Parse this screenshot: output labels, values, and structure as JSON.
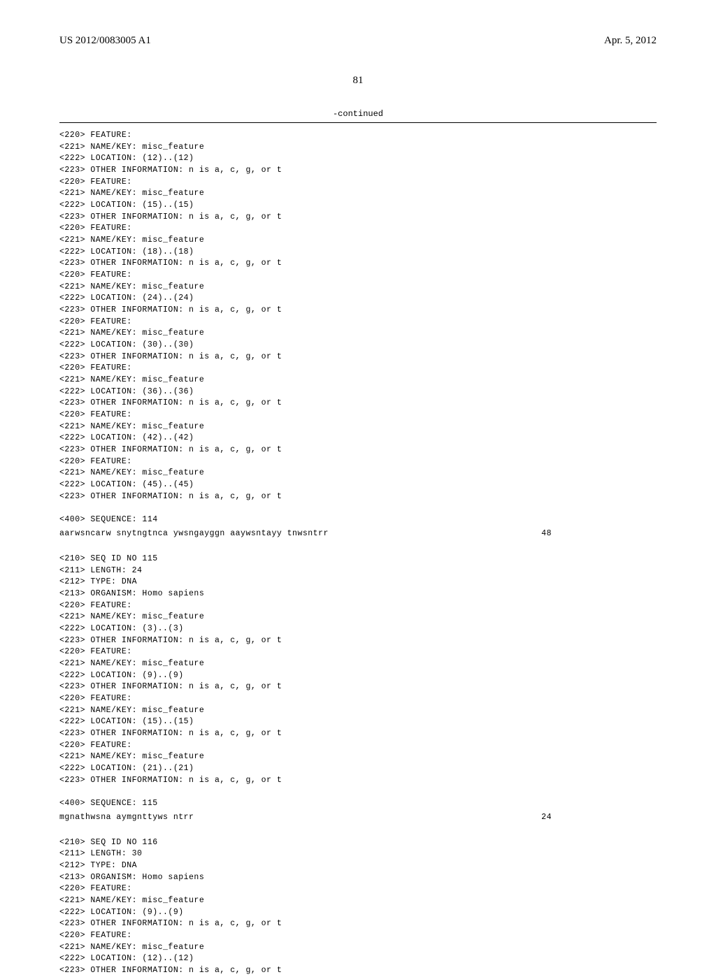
{
  "header": {
    "publication": "US 2012/0083005 A1",
    "date": "Apr. 5, 2012"
  },
  "pageNumber": "81",
  "continuedLabel": "-continued",
  "block1": {
    "lines": [
      "<220> FEATURE:",
      "<221> NAME/KEY: misc_feature",
      "<222> LOCATION: (12)..(12)",
      "<223> OTHER INFORMATION: n is a, c, g, or t",
      "<220> FEATURE:",
      "<221> NAME/KEY: misc_feature",
      "<222> LOCATION: (15)..(15)",
      "<223> OTHER INFORMATION: n is a, c, g, or t",
      "<220> FEATURE:",
      "<221> NAME/KEY: misc_feature",
      "<222> LOCATION: (18)..(18)",
      "<223> OTHER INFORMATION: n is a, c, g, or t",
      "<220> FEATURE:",
      "<221> NAME/KEY: misc_feature",
      "<222> LOCATION: (24)..(24)",
      "<223> OTHER INFORMATION: n is a, c, g, or t",
      "<220> FEATURE:",
      "<221> NAME/KEY: misc_feature",
      "<222> LOCATION: (30)..(30)",
      "<223> OTHER INFORMATION: n is a, c, g, or t",
      "<220> FEATURE:",
      "<221> NAME/KEY: misc_feature",
      "<222> LOCATION: (36)..(36)",
      "<223> OTHER INFORMATION: n is a, c, g, or t",
      "<220> FEATURE:",
      "<221> NAME/KEY: misc_feature",
      "<222> LOCATION: (42)..(42)",
      "<223> OTHER INFORMATION: n is a, c, g, or t",
      "<220> FEATURE:",
      "<221> NAME/KEY: misc_feature",
      "<222> LOCATION: (45)..(45)",
      "<223> OTHER INFORMATION: n is a, c, g, or t",
      "",
      "<400> SEQUENCE: 114"
    ],
    "sequence": "aarwsncarw snytngtnca ywsngayggn aaywsntayy tnwsntrr",
    "seqNum": "48"
  },
  "block2": {
    "lines": [
      "<210> SEQ ID NO 115",
      "<211> LENGTH: 24",
      "<212> TYPE: DNA",
      "<213> ORGANISM: Homo sapiens",
      "<220> FEATURE:",
      "<221> NAME/KEY: misc_feature",
      "<222> LOCATION: (3)..(3)",
      "<223> OTHER INFORMATION: n is a, c, g, or t",
      "<220> FEATURE:",
      "<221> NAME/KEY: misc_feature",
      "<222> LOCATION: (9)..(9)",
      "<223> OTHER INFORMATION: n is a, c, g, or t",
      "<220> FEATURE:",
      "<221> NAME/KEY: misc_feature",
      "<222> LOCATION: (15)..(15)",
      "<223> OTHER INFORMATION: n is a, c, g, or t",
      "<220> FEATURE:",
      "<221> NAME/KEY: misc_feature",
      "<222> LOCATION: (21)..(21)",
      "<223> OTHER INFORMATION: n is a, c, g, or t",
      "",
      "<400> SEQUENCE: 115"
    ],
    "sequence": "mgnathwsna aymgnttyws ntrr",
    "seqNum": "24"
  },
  "block3": {
    "lines": [
      "<210> SEQ ID NO 116",
      "<211> LENGTH: 30",
      "<212> TYPE: DNA",
      "<213> ORGANISM: Homo sapiens",
      "<220> FEATURE:",
      "<221> NAME/KEY: misc_feature",
      "<222> LOCATION: (9)..(9)",
      "<223> OTHER INFORMATION: n is a, c, g, or t",
      "<220> FEATURE:",
      "<221> NAME/KEY: misc_feature",
      "<222> LOCATION: (12)..(12)",
      "<223> OTHER INFORMATION: n is a, c, g, or t"
    ]
  }
}
